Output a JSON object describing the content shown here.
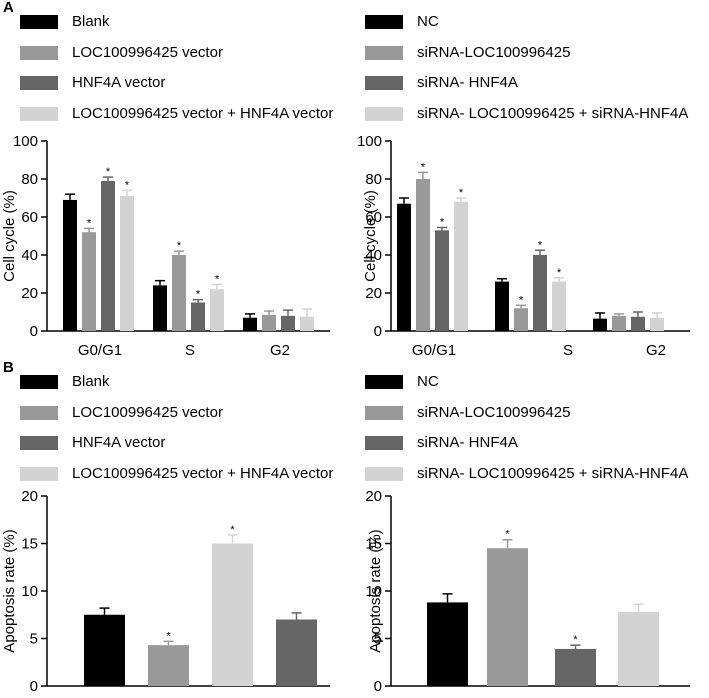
{
  "panel_labels": {
    "a": "A",
    "b": "B"
  },
  "colors": {
    "c0": "#000000",
    "c1": "#999999",
    "c2": "#666666",
    "c3": "#d3d3d3"
  },
  "legends": {
    "aLeft": [
      "Blank",
      "LOC100996425 vector",
      "HNF4A vector",
      "LOC100996425 vector + HNF4A vector"
    ],
    "aRight": [
      "NC",
      "siRNA-LOC100996425",
      "siRNA- HNF4A",
      "siRNA- LOC100996425 + siRNA-HNF4A"
    ],
    "bLeft": [
      "Blank",
      "LOC100996425 vector",
      "HNF4A vector",
      "LOC100996425 vector + HNF4A vector"
    ],
    "bRight": [
      "NC",
      "siRNA-LOC100996425",
      "siRNA- HNF4A",
      "siRNA- LOC100996425 + siRNA-HNF4A"
    ]
  },
  "chart_data": [
    {
      "id": "aLeft",
      "type": "bar",
      "ylabel": "Cell cycle (%)",
      "ylim": [
        0,
        100
      ],
      "yticks": [
        "0",
        "20",
        "40",
        "60",
        "80",
        "100"
      ],
      "categories": [
        "G0/G1",
        "S",
        "G2"
      ],
      "series": [
        {
          "name": "Blank",
          "values": [
            69,
            24,
            7
          ],
          "errors": [
            3,
            2.5,
            2
          ]
        },
        {
          "name": "LOC100996425 vector",
          "values": [
            52,
            40,
            8.5
          ],
          "errors": [
            2,
            2,
            2
          ]
        },
        {
          "name": "HNF4A vector",
          "values": [
            79,
            15,
            8
          ],
          "errors": [
            2,
            1.5,
            3
          ]
        },
        {
          "name": "LOC100996425 vector + HNF4A vector",
          "values": [
            71,
            22,
            7.5
          ],
          "errors": [
            3,
            2.5,
            4
          ]
        }
      ],
      "significance_marker": "*",
      "significant": [
        [
          false,
          true,
          true,
          true
        ],
        [
          false,
          true,
          true,
          true
        ],
        [
          false,
          false,
          false,
          false
        ]
      ]
    },
    {
      "id": "aRight",
      "type": "bar",
      "ylabel": "Cell cycle (%)",
      "ylim": [
        0,
        100
      ],
      "yticks": [
        "0",
        "20",
        "40",
        "60",
        "80",
        "100"
      ],
      "categories": [
        "G0/G1",
        "S",
        "G2"
      ],
      "series": [
        {
          "name": "NC",
          "values": [
            67,
            26,
            6.5
          ],
          "errors": [
            3,
            1.5,
            3
          ]
        },
        {
          "name": "siRNA-LOC100996425",
          "values": [
            80,
            12,
            8
          ],
          "errors": [
            3.5,
            1.5,
            1
          ]
        },
        {
          "name": "siRNA- HNF4A",
          "values": [
            53,
            40,
            7.5
          ],
          "errors": [
            1.5,
            2.5,
            2.5
          ]
        },
        {
          "name": "siRNA- LOC100996425 + siRNA-HNF4A",
          "values": [
            68,
            26,
            7
          ],
          "errors": [
            2,
            2,
            2.5
          ]
        }
      ],
      "significance_marker": "*",
      "significant": [
        [
          false,
          true,
          true,
          true
        ],
        [
          false,
          true,
          true,
          true
        ],
        [
          false,
          false,
          false,
          false
        ]
      ]
    },
    {
      "id": "bLeft",
      "type": "bar",
      "ylabel": "Apoptosis rate (%)",
      "ylim": [
        0,
        20
      ],
      "yticks": [
        "0",
        "5",
        "10",
        "15",
        "20"
      ],
      "categories": [
        "Blank",
        "LOC100996425 vector",
        "LOC100996425 vector + HNF4A vector",
        "HNF4A vector"
      ],
      "values": [
        7.5,
        4.3,
        15.0,
        7.0
      ],
      "errors": [
        0.7,
        0.4,
        0.9,
        0.7
      ],
      "significance_marker": "*",
      "significant": [
        false,
        true,
        true,
        false
      ]
    },
    {
      "id": "bRight",
      "type": "bar",
      "ylabel": "Apoptosis rate (%)",
      "ylim": [
        0,
        20
      ],
      "yticks": [
        "0",
        "5",
        "10",
        "15",
        "20"
      ],
      "categories": [
        "NC",
        "siRNA-LOC100996425",
        "siRNA- HNF4A",
        "siRNA- LOC100996425 + siRNA-HNF4A"
      ],
      "values": [
        8.8,
        14.5,
        3.9,
        7.8
      ],
      "errors": [
        0.9,
        0.9,
        0.4,
        0.8
      ],
      "significance_marker": "*",
      "significant": [
        false,
        true,
        true,
        false
      ]
    }
  ]
}
